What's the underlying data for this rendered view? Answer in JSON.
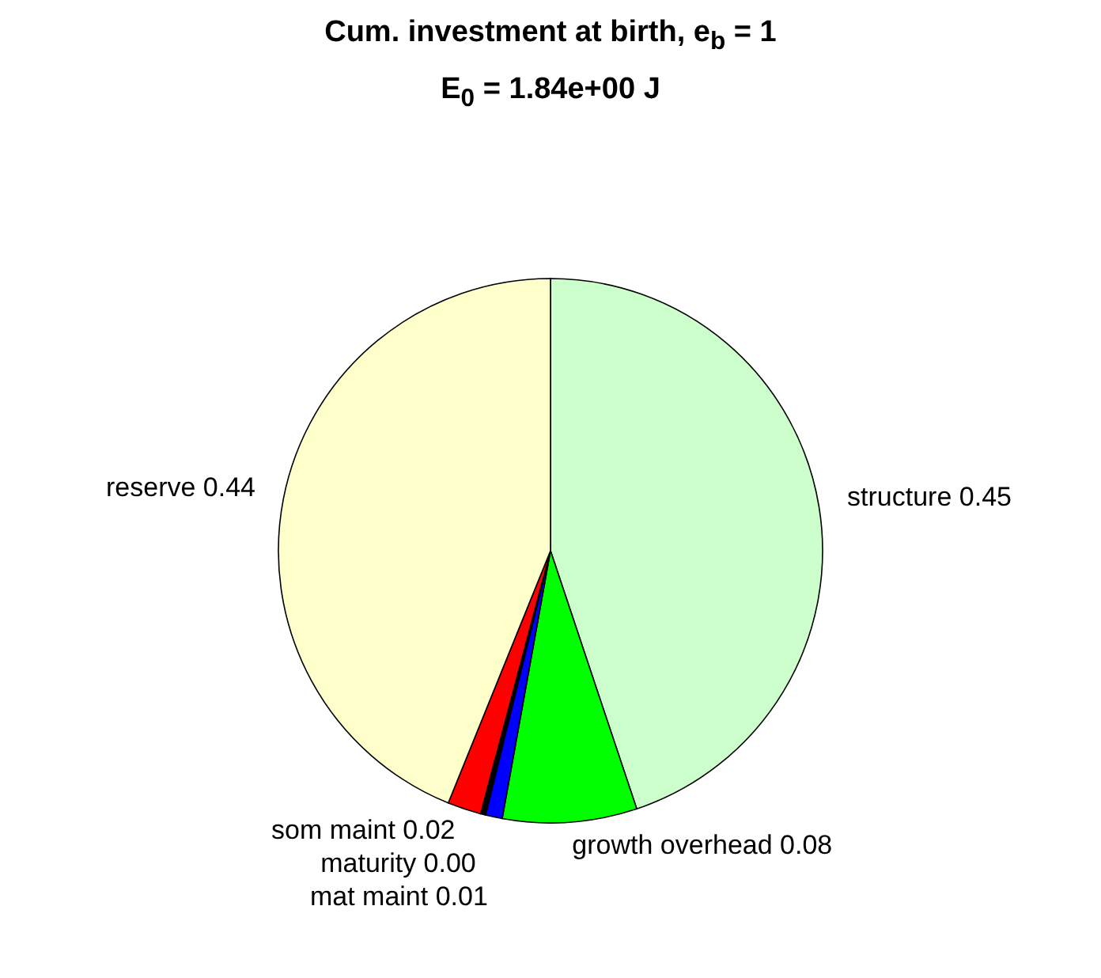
{
  "chart_data": {
    "type": "pie",
    "title": "Cum. investment at birth, e$_{b}$ = 1",
    "subtitle": "E$_{0}$ = 1.84e+00 J",
    "categories": [
      "structure",
      "growth overhead",
      "mat maint",
      "maturity",
      "som maint",
      "reserve"
    ],
    "values": [
      0.45,
      0.08,
      0.01,
      0.003,
      0.02,
      0.44
    ],
    "value_labels": [
      "0.45",
      "0.08",
      "0.01",
      "0.00",
      "0.02",
      "0.44"
    ],
    "colors": [
      "#ccffcc",
      "#00ff00",
      "#0000ff",
      "#000000",
      "#ff0000",
      "#ffffcc"
    ]
  }
}
